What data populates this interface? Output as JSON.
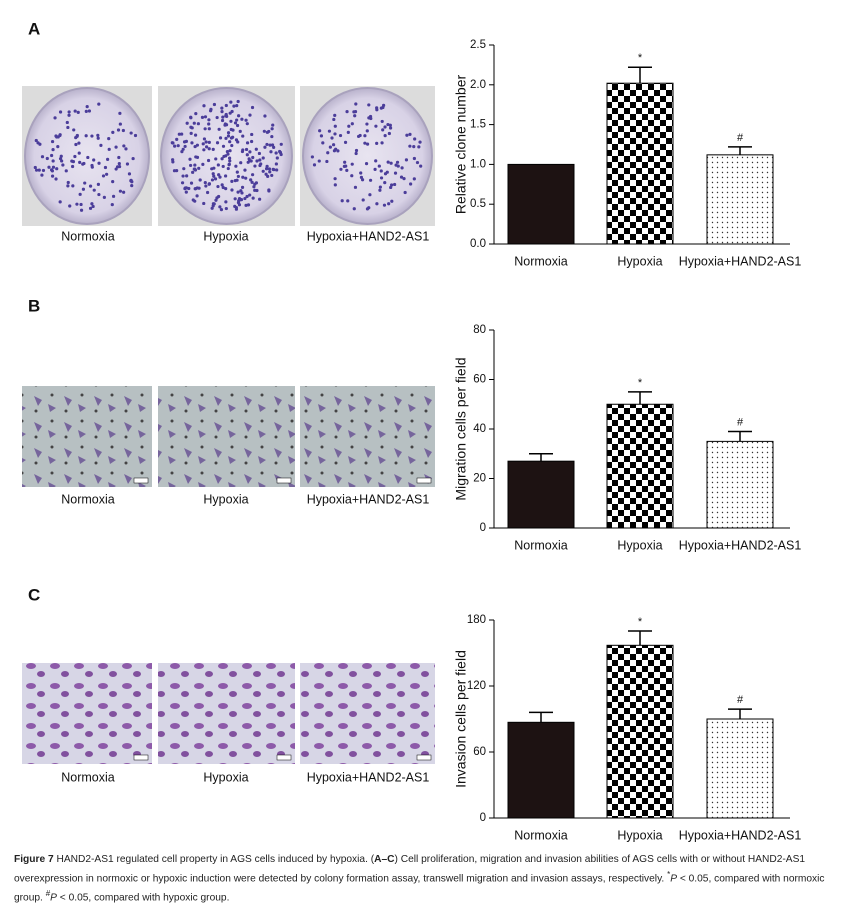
{
  "panels": [
    {
      "label": "A",
      "captions": [
        "Normoxia",
        "Hypoxia",
        "Hypoxia+HAND2-AS1"
      ]
    },
    {
      "label": "B",
      "captions": [
        "Normoxia",
        "Hypoxia",
        "Hypoxia+HAND2-AS1"
      ]
    },
    {
      "label": "C",
      "captions": [
        "Normoxia",
        "Hypoxia",
        "Hypoxia+HAND2-AS1"
      ]
    }
  ],
  "chart_data": [
    {
      "type": "bar",
      "y_label": "Relative clone number",
      "categories": [
        "Normoxia",
        "Hypoxia",
        "Hypoxia+HAND2-AS1"
      ],
      "values": [
        1.0,
        2.02,
        1.12
      ],
      "errors": [
        0,
        0.2,
        0.1
      ],
      "fills": [
        "solid",
        "checkerboard",
        "dotted"
      ],
      "annotations": [
        {
          "text": "*",
          "category": "Hypoxia"
        },
        {
          "text": "#",
          "category": "Hypoxia+HAND2-AS1"
        }
      ],
      "ylim": [
        0,
        2.5
      ],
      "yticks": [
        {
          "value": 0,
          "label": "0.0"
        },
        0.5,
        {
          "value": 1,
          "label": "1.0"
        },
        1.5,
        {
          "value": 2,
          "label": "2.0"
        },
        2.5
      ]
    },
    {
      "type": "bar",
      "y_label": "Migration cells per field",
      "categories": [
        "Normoxia",
        "Hypoxia",
        "Hypoxia+HAND2-AS1"
      ],
      "values": [
        27,
        50,
        35
      ],
      "errors": [
        3,
        5,
        4
      ],
      "fills": [
        "solid",
        "checkerboard",
        "dotted"
      ],
      "annotations": [
        {
          "text": "*",
          "category": "Hypoxia"
        },
        {
          "text": "#",
          "category": "Hypoxia+HAND2-AS1"
        }
      ],
      "ylim": [
        0,
        80
      ],
      "yticks": [
        0,
        20,
        40,
        60,
        80
      ]
    },
    {
      "type": "bar",
      "y_label": "Invasion cells per field",
      "categories": [
        "Normoxia",
        "Hypoxia",
        "Hypoxia+HAND2-AS1"
      ],
      "values": [
        87,
        157,
        90
      ],
      "errors": [
        9,
        13,
        9
      ],
      "fills": [
        "solid",
        "checkerboard",
        "dotted"
      ],
      "annotations": [
        {
          "text": "*",
          "category": "Hypoxia"
        },
        {
          "text": "#",
          "category": "Hypoxia+HAND2-AS1"
        }
      ],
      "ylim": [
        0,
        180
      ],
      "yticks": [
        0,
        60,
        120,
        180
      ]
    }
  ],
  "caption": [
    {
      "text": "Figure 7",
      "style": "bold"
    },
    {
      "text": " HAND2-AS1 regulated cell property in AGS cells induced by hypoxia. (",
      "style": "normal"
    },
    {
      "text": "A–C",
      "style": "bold"
    },
    {
      "text": ") Cell proliferation, migration and invasion abilities of AGS cells with or without HAND2-AS1 overexpression in normoxic or hypoxic induction were detected by colony formation assay, transwell migration and invasion assays, respectively. ",
      "style": "normal"
    },
    {
      "text": "*",
      "style": "sup"
    },
    {
      "text": "P",
      "style": "italic"
    },
    {
      "text": " < 0.05, compared with normoxic group. ",
      "style": "normal"
    },
    {
      "text": "#",
      "style": "sup"
    },
    {
      "text": "P",
      "style": "italic"
    },
    {
      "text": " < 0.05, compared with hypoxic group.",
      "style": "normal"
    }
  ]
}
